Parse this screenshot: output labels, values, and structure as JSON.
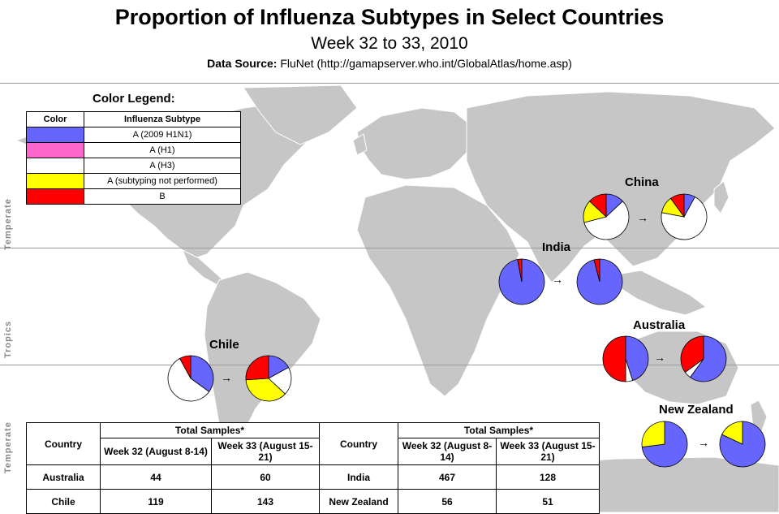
{
  "header": {
    "title": "Proportion of Influenza Subtypes in Select Countries",
    "subtitle": "Week 32 to 33, 2010",
    "source_label": "Data Source:",
    "source_text": "FluNet (http://gamapserver.who.int/GlobalAtlas/home.asp)"
  },
  "zones": {
    "temperate_top": "Temperate",
    "tropics": "Tropics",
    "temperate_bottom": "Temperate"
  },
  "legend": {
    "title": "Color Legend:",
    "col_color": "Color",
    "col_subtype": "Influenza Subtype",
    "items": [
      {
        "label": "A (2009  H1N1)",
        "color": "#6666ff"
      },
      {
        "label": "A (H1)",
        "color": "#ff66cc"
      },
      {
        "label": "A (H3)",
        "color": "#ffffff"
      },
      {
        "label": "A (subtyping  not performed)",
        "color": "#ffff00"
      },
      {
        "label": "B",
        "color": "#ff0000"
      }
    ]
  },
  "countries": {
    "china": "China",
    "india": "India",
    "australia": "Australia",
    "chile": "Chile",
    "new_zealand": "New Zealand"
  },
  "arrow": "→",
  "pies": {
    "china_w32": [
      0.13,
      0,
      0.58,
      0.16,
      0.13
    ],
    "china_w33": [
      0.08,
      0,
      0.7,
      0.12,
      0.1
    ],
    "india_w32": [
      0.97,
      0,
      0,
      0,
      0.03
    ],
    "india_w33": [
      0.96,
      0,
      0,
      0,
      0.04
    ],
    "australia_w32": [
      0.45,
      0,
      0.05,
      0,
      0.5
    ],
    "australia_w33": [
      0.6,
      0,
      0.05,
      0,
      0.35
    ],
    "chile_w32": [
      0.35,
      0,
      0.57,
      0,
      0.08
    ],
    "chile_w33": [
      0.17,
      0,
      0.2,
      0.37,
      0.26
    ],
    "nz_w32": [
      0.73,
      0,
      0,
      0.27,
      0
    ],
    "nz_w33": [
      0.82,
      0,
      0,
      0.18,
      0
    ]
  },
  "samples_table": {
    "col_country": "Country",
    "col_total": "Total Samples*",
    "col_w32_left": "Week 32 (August 8-14)",
    "col_w33_left": "Week 33 (August 15-21)",
    "col_w32_right": "Week 32 (August 8-14)",
    "col_w33_right": "Week 33 (August 15-21)",
    "rows": [
      {
        "c1": "Australia",
        "w32a": "44",
        "w33a": "60",
        "c2": "India",
        "w32b": "467",
        "w33b": "128"
      },
      {
        "c1": "Chile",
        "w32a": "119",
        "w33a": "143",
        "c2": "New Zealand",
        "w32b": "56",
        "w33b": "51"
      }
    ]
  }
}
